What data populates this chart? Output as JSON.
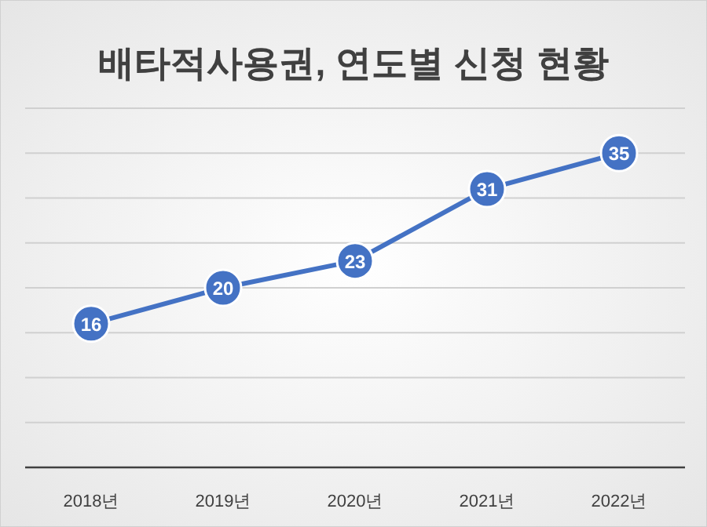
{
  "chart_data": {
    "type": "line",
    "title": "배타적사용권, 연도별 신청 현황",
    "categories": [
      "2018년",
      "2019년",
      "2020년",
      "2021년",
      "2022년"
    ],
    "series": [
      {
        "color": "#4472c4",
        "values": [
          16,
          20,
          23,
          31,
          35
        ]
      }
    ],
    "ylim": [
      0,
      40
    ],
    "yticks": [
      {
        "value": 0,
        "label": null
      },
      {
        "value": 5,
        "label": null
      },
      {
        "value": 10,
        "label": null
      },
      {
        "value": 15,
        "label": null
      },
      {
        "value": 20,
        "label": null
      },
      {
        "value": 25,
        "label": null
      },
      {
        "value": 30,
        "label": null
      },
      {
        "value": 35,
        "label": null
      },
      {
        "value": 40,
        "label": null
      }
    ],
    "grid": "y",
    "marker": "circle",
    "data_labels": true,
    "tick_labels": "x"
  }
}
